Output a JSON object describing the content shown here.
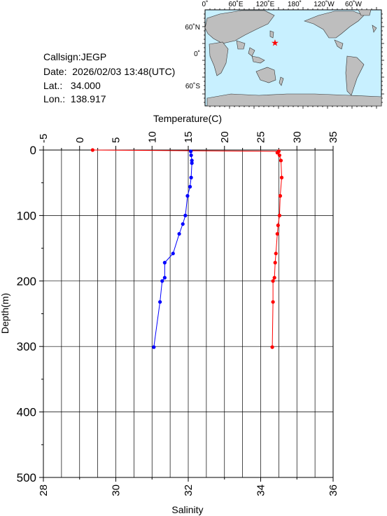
{
  "station": {
    "callsign": "Callsign:JEGP",
    "date_label": "Date:",
    "date_value": "2026/02/03 13:48(UTC)",
    "lat_label": "Lat.:",
    "lat_value": "34.000",
    "lon_label": "Lon.:",
    "lon_value": "138.917"
  },
  "map": {
    "top_labels": [
      "0˚",
      "60˚E",
      "120˚E",
      "180˚",
      "120˚W",
      "60˚W"
    ],
    "left_labels": [
      "60˚N",
      "0˚",
      "60˚S"
    ],
    "ocean_color": "#c8f0ff",
    "land_color": "#bebebe",
    "marker_color": "#ff0000",
    "marker_icon": "star-icon"
  },
  "chart_data": {
    "type": "line",
    "top_axis": {
      "label": "Temperature(C)",
      "lim": [
        -5,
        35
      ],
      "ticks": [
        "-5",
        "0",
        "5",
        "10",
        "15",
        "20",
        "25",
        "30",
        "35"
      ]
    },
    "bottom_axis": {
      "label": "Salinity",
      "lim": [
        28,
        36
      ],
      "ticks": [
        "28",
        "30",
        "32",
        "34",
        "36"
      ]
    },
    "y_axis": {
      "label": "Depth(m)",
      "lim": [
        0,
        500
      ],
      "inverted": true,
      "ticks": [
        "0",
        "100",
        "200",
        "300",
        "400",
        "500"
      ]
    },
    "grid": true,
    "series": [
      {
        "axis": "temperature",
        "color": "#ff0000",
        "points": [
          [
            1.8,
            0
          ],
          [
            27.5,
            2
          ],
          [
            27.3,
            4
          ],
          [
            27.6,
            8
          ],
          [
            27.8,
            16
          ],
          [
            27.9,
            42
          ],
          [
            27.7,
            70
          ],
          [
            27.6,
            100
          ],
          [
            27.4,
            115
          ],
          [
            27.3,
            128
          ],
          [
            27.1,
            158
          ],
          [
            27.0,
            172
          ],
          [
            26.9,
            195
          ],
          [
            26.7,
            200
          ],
          [
            26.7,
            232
          ],
          [
            26.6,
            301
          ]
        ]
      },
      {
        "axis": "salinity",
        "color": "#0000ff",
        "points": [
          [
            32.07,
            2
          ],
          [
            32.08,
            8
          ],
          [
            32.1,
            16
          ],
          [
            32.1,
            20
          ],
          [
            32.08,
            42
          ],
          [
            32.05,
            56
          ],
          [
            31.98,
            70
          ],
          [
            31.92,
            100
          ],
          [
            31.85,
            113
          ],
          [
            31.75,
            128
          ],
          [
            31.58,
            158
          ],
          [
            31.35,
            172
          ],
          [
            31.35,
            195
          ],
          [
            31.28,
            200
          ],
          [
            31.22,
            232
          ],
          [
            31.05,
            301
          ]
        ]
      }
    ]
  }
}
